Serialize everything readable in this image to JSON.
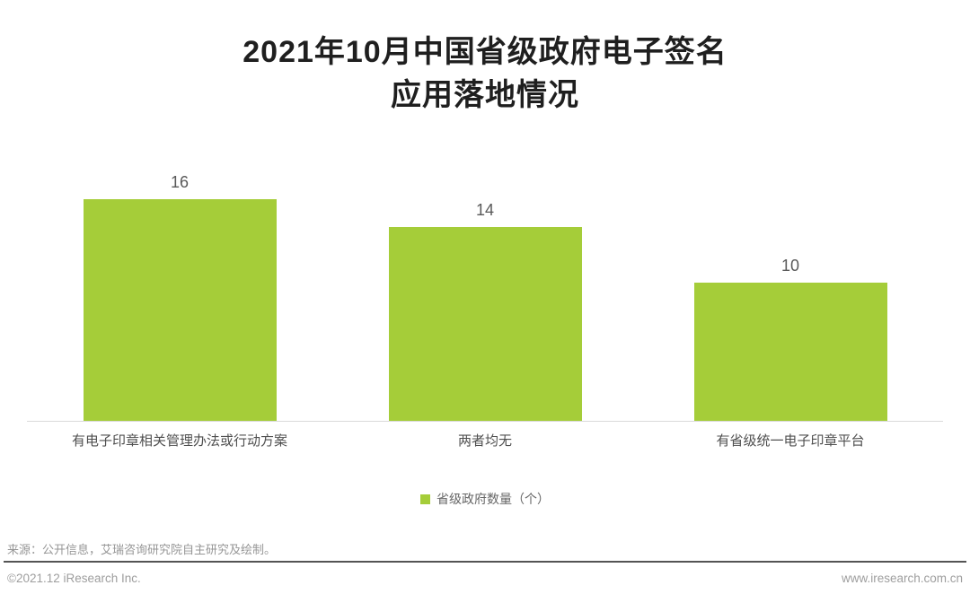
{
  "title": {
    "line1": "2021年10月中国省级政府电子签名",
    "line2": "应用落地情况"
  },
  "chart_data": {
    "type": "bar",
    "title": "2021年10月中国省级政府电子签名应用落地情况",
    "categories": [
      "有电子印章相关管理办法或行动方案",
      "两者均无",
      "有省级统一电子印章平台"
    ],
    "values": [
      16,
      14,
      10
    ],
    "series": [
      {
        "name": "省级政府数量（个）",
        "values": [
          16,
          14,
          10
        ]
      }
    ],
    "xlabel": "",
    "ylabel": "",
    "ylim": [
      0,
      16
    ],
    "grid": false,
    "legend_position": "bottom",
    "bar_color": "#a5cd39",
    "value_labels_shown": true
  },
  "legend": {
    "label": "省级政府数量（个）",
    "color": "#a5cd39"
  },
  "source": "来源：公开信息，艾瑞咨询研究院自主研究及绘制。",
  "footer": {
    "copyright": "©2021.12 iResearch Inc.",
    "website": "www.iresearch.com.cn"
  }
}
